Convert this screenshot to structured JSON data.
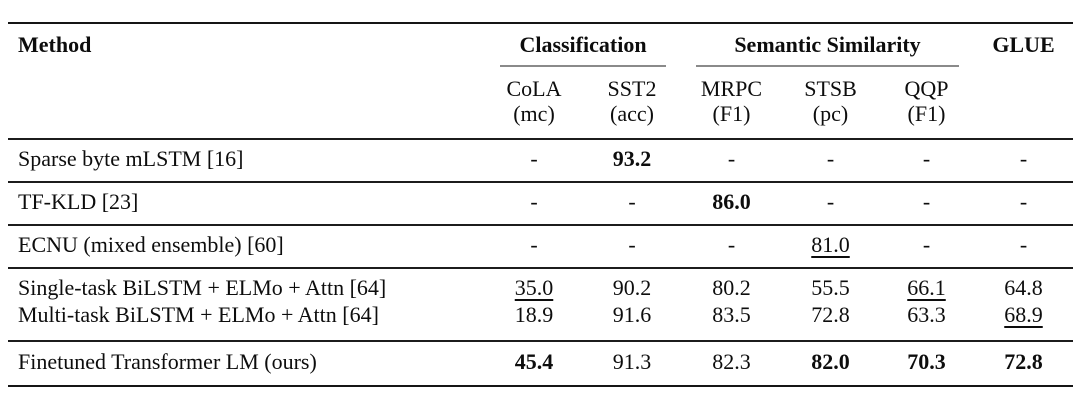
{
  "table": {
    "method_header": "Method",
    "groups": [
      {
        "label": "Classification",
        "span": 2
      },
      {
        "label": "Semantic Similarity",
        "span": 3
      },
      {
        "label": "GLUE",
        "span": 1
      }
    ],
    "subcolumns": [
      {
        "name": "CoLA",
        "metric": "(mc)"
      },
      {
        "name": "SST2",
        "metric": "(acc)"
      },
      {
        "name": "MRPC",
        "metric": "(F1)"
      },
      {
        "name": "STSB",
        "metric": "(pc)"
      },
      {
        "name": "QQP",
        "metric": "(F1)"
      }
    ],
    "row_groups": [
      {
        "lines": [
          {
            "method": "Sparse byte mLSTM [16]",
            "cells": [
              {
                "v": "-"
              },
              {
                "v": "93.2",
                "style": "bold"
              },
              {
                "v": "-"
              },
              {
                "v": "-"
              },
              {
                "v": "-"
              },
              {
                "v": "-"
              }
            ]
          }
        ]
      },
      {
        "lines": [
          {
            "method": "TF-KLD [23]",
            "cells": [
              {
                "v": "-"
              },
              {
                "v": "-"
              },
              {
                "v": "86.0",
                "style": "bold"
              },
              {
                "v": "-"
              },
              {
                "v": "-"
              },
              {
                "v": "-"
              }
            ]
          }
        ]
      },
      {
        "lines": [
          {
            "method": "ECNU (mixed ensemble) [60]",
            "cells": [
              {
                "v": "-"
              },
              {
                "v": "-"
              },
              {
                "v": "-"
              },
              {
                "v": "81.0",
                "style": "underline"
              },
              {
                "v": "-"
              },
              {
                "v": "-"
              }
            ]
          }
        ]
      },
      {
        "lines": [
          {
            "method": "Single-task BiLSTM + ELMo + Attn [64]",
            "cells": [
              {
                "v": "35.0",
                "style": "underline"
              },
              {
                "v": "90.2"
              },
              {
                "v": "80.2"
              },
              {
                "v": "55.5"
              },
              {
                "v": "66.1",
                "style": "underline"
              },
              {
                "v": "64.8"
              }
            ]
          },
          {
            "method": "Multi-task BiLSTM + ELMo + Attn [64]",
            "cells": [
              {
                "v": "18.9"
              },
              {
                "v": "91.6"
              },
              {
                "v": "83.5"
              },
              {
                "v": "72.8"
              },
              {
                "v": "63.3"
              },
              {
                "v": "68.9",
                "style": "underline"
              }
            ]
          }
        ]
      },
      {
        "lines": [
          {
            "method": "Finetuned Transformer LM (ours)",
            "cells": [
              {
                "v": "45.4",
                "style": "bold"
              },
              {
                "v": "91.3"
              },
              {
                "v": "82.3"
              },
              {
                "v": "82.0",
                "style": "bold"
              },
              {
                "v": "70.3",
                "style": "bold"
              },
              {
                "v": "72.8",
                "style": "bold"
              }
            ]
          }
        ]
      }
    ],
    "colors": {
      "background": "#ffffff",
      "text": "#0d0d0d",
      "heavy_rule": "#151515",
      "mid_rule": "#1c1c1c",
      "cmidrule": "#8a8a8a"
    }
  }
}
